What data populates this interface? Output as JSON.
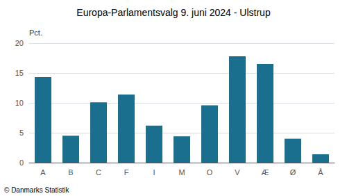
{
  "chart_data": {
    "type": "bar",
    "title": "Europa-Parlamentsvalg 9. juni 2024 - Ulstrup",
    "categories": [
      "A",
      "B",
      "C",
      "F",
      "I",
      "M",
      "O",
      "V",
      "Æ",
      "Ø",
      "Å"
    ],
    "values": [
      14.3,
      4.5,
      10.1,
      11.4,
      6.2,
      4.4,
      9.6,
      17.8,
      16.5,
      4.0,
      1.4
    ],
    "color": "#1a6e8e",
    "ylabel": "Pct.",
    "ylim": [
      0,
      20
    ],
    "yticks": [
      0,
      5,
      10,
      15,
      20
    ],
    "grid": true,
    "annotations": [
      "© Danmarks Statistik"
    ]
  }
}
